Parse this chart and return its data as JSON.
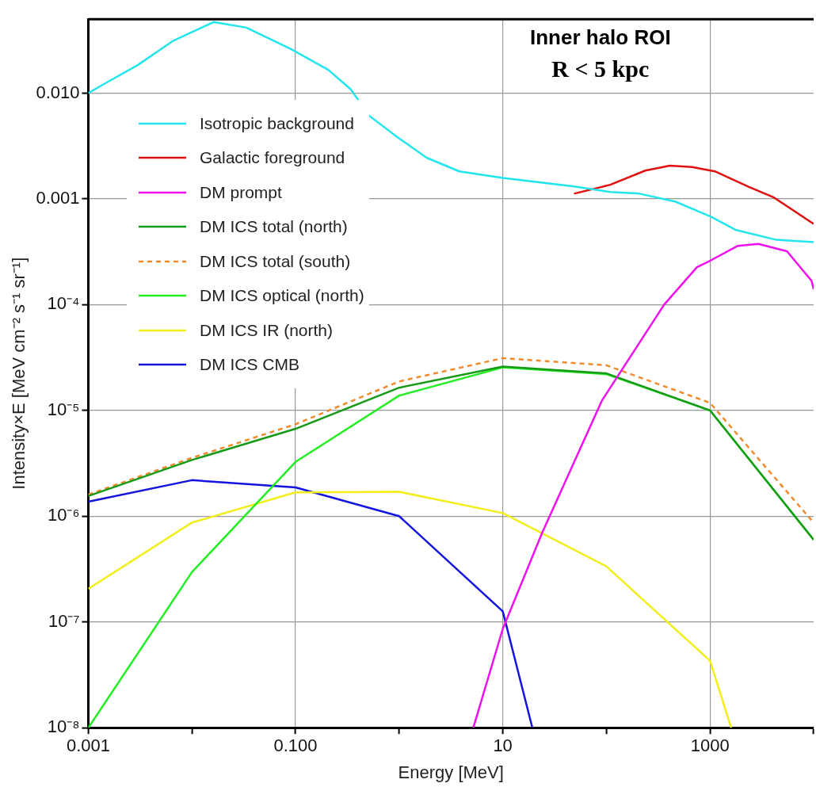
{
  "chart_data": {
    "type": "line",
    "title": "Inner halo ROI",
    "subtitle": "R < 5 kpc",
    "xlabel": "Energy [MeV]",
    "ylabel": "Intensity×E [MeV cm⁻² s⁻¹ sr⁻¹]",
    "log": "xy",
    "grid": true,
    "legend": "top left",
    "marker": "none",
    "xlim": [
      0.001,
      10000
    ],
    "ylim": [
      1e-08,
      0.05
    ],
    "xticks": [
      {
        "value": 0.001,
        "label": "0.001"
      },
      {
        "value": 0.01,
        "label": null
      },
      {
        "value": 0.1,
        "label": "0.100"
      },
      {
        "value": 1,
        "label": null
      },
      10,
      {
        "value": 100,
        "label": null
      },
      1000,
      {
        "value": 10000,
        "label": null
      }
    ],
    "yticks": [
      {
        "value": 1e-08,
        "label": "10⁻⁸"
      },
      {
        "value": 1e-07,
        "label": "10⁻⁷"
      },
      {
        "value": 1e-06,
        "label": "10⁻⁶"
      },
      {
        "value": 1e-05,
        "label": "10⁻⁵"
      },
      {
        "value": 0.0001,
        "label": "10⁻⁴"
      },
      0.001,
      {
        "value": 0.01,
        "label": "0.010"
      }
    ],
    "series": [
      {
        "name": "Isotropic background",
        "color": "#22e5ee",
        "x": [
          0.001,
          0.00144,
          0.003,
          0.0065,
          0.0162,
          0.0336,
          0.091,
          0.207,
          0.34,
          0.515,
          0.955,
          1.84,
          3.81,
          10,
          48.7,
          109,
          209,
          466,
          1020,
          1760,
          4370,
          10000
        ],
        "values": [
          0.01,
          0.0123,
          0.0184,
          0.031,
          0.047,
          0.0416,
          0.026,
          0.0166,
          0.0109,
          0.0061,
          0.00385,
          0.00245,
          0.00182,
          0.00158,
          0.00131,
          0.00116,
          0.00112,
          0.00094,
          0.00068,
          0.00051,
          0.00041,
          0.00039
        ]
      },
      {
        "name": "Galactic foreground",
        "color": "#e01010",
        "x": [
          48.7,
          109,
          237,
          410,
          670,
          1115,
          2400,
          4140,
          10000
        ],
        "values": [
          0.00112,
          0.00136,
          0.00185,
          0.00206,
          0.002,
          0.00182,
          0.00129,
          0.00103,
          0.00058
        ]
      },
      {
        "name": "DM prompt",
        "color": "#ee10ee",
        "x": [
          5.2,
          10,
          23.9,
          90.6,
          361,
          748,
          1000,
          1858,
          2925,
          5530,
          9550,
          10000
        ],
        "values": [
          1e-08,
          8.6e-08,
          6.9e-07,
          1.24e-05,
          0.0001,
          0.000226,
          0.00026,
          0.00036,
          0.000375,
          0.00032,
          0.000168,
          0.00014
        ]
      },
      {
        "name": "DM ICS total (north)",
        "color": "#179a17",
        "x": [
          0.001,
          0.01,
          0.1,
          1,
          10,
          100,
          1000,
          10000
        ],
        "values": [
          1.55e-06,
          3.4e-06,
          6.7e-06,
          1.64e-05,
          2.6e-05,
          2.24e-05,
          1e-05,
          6e-07
        ]
      },
      {
        "name": "DM ICS total (south)",
        "color": "#f08a2c",
        "line_style": "dashed",
        "x": [
          0.001,
          0.01,
          0.1,
          1,
          10,
          100,
          1000,
          10000
        ],
        "values": [
          1.6e-06,
          3.56e-06,
          7.4e-06,
          1.88e-05,
          3.12e-05,
          2.67e-05,
          1.18e-05,
          8.7e-07
        ]
      },
      {
        "name": "DM ICS optical (north)",
        "color": "#22ee22",
        "x": [
          0.001,
          0.01,
          0.1,
          1,
          10,
          100,
          1000,
          10000
        ],
        "values": [
          1e-08,
          2.96e-07,
          3.26e-06,
          1.38e-05,
          2.55e-05,
          2.2e-05,
          1e-05,
          6e-07
        ]
      },
      {
        "name": "DM ICS IR (north)",
        "color": "#f2ee1a",
        "x": [
          0.001,
          0.01,
          0.1,
          1,
          10,
          100,
          1000,
          1600
        ],
        "values": [
          2.06e-07,
          8.7e-07,
          1.68e-06,
          1.7e-06,
          1.07e-06,
          3.35e-07,
          4.3e-08,
          1e-08
        ]
      },
      {
        "name": "DM ICS CMB",
        "color": "#1414e0",
        "x": [
          0.001,
          0.01,
          0.1,
          1,
          10,
          19.3
        ],
        "values": [
          1.37e-06,
          2.19e-06,
          1.87e-06,
          1e-06,
          1.26e-07,
          1e-08
        ]
      }
    ]
  }
}
